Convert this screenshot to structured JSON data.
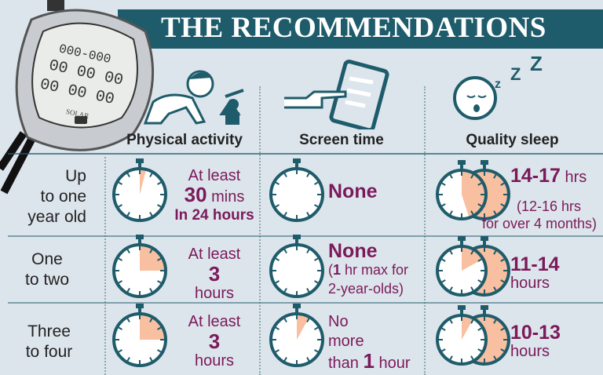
{
  "title": "THE RECOMMENDATIONS",
  "colors": {
    "banner": "#1f5c6b",
    "accent_text": "#7a1a5a",
    "clock_fill": "#f8bfa0",
    "clock_stroke": "#1f5c6b"
  },
  "columns": [
    {
      "label": "Physical activity",
      "icon": "crawling-baby-icon"
    },
    {
      "label": "Screen time",
      "icon": "tablet-pointing-hand-icon"
    },
    {
      "label": "Quality sleep",
      "icon": "sleeping-baby-icon"
    }
  ],
  "stopwatch_lettering": "SOLAR",
  "rows": [
    {
      "label": [
        "Up",
        "to one",
        "year old"
      ],
      "physical": {
        "line1": "At least",
        "value": "30",
        "unit": "mins",
        "line3": "In 24 hours",
        "fill": 0.04
      },
      "screen": {
        "value": "None",
        "fill": 0
      },
      "sleep": {
        "value": "14-17",
        "unit": "hrs",
        "note1": "(12-16 hrs",
        "note2": "for over 4 months)",
        "fill": 0.45
      }
    },
    {
      "label": [
        "One",
        "to two"
      ],
      "physical": {
        "line1": "At least",
        "value": "3",
        "unit": "hours",
        "fill": 0.25
      },
      "screen": {
        "value": "None",
        "note_bold": "1",
        "note1": " hr max for",
        "note2": "2-year-olds)",
        "note_open": "(",
        "fill": 0
      },
      "sleep": {
        "value": "11-14",
        "unit": "hours",
        "fill": 0.17
      }
    },
    {
      "label": [
        "Three",
        "to four"
      ],
      "physical": {
        "line1": "At least",
        "value": "3",
        "unit": "hours",
        "fill": 0.25
      },
      "screen": {
        "line1": "No",
        "line2": "more",
        "line3": "than",
        "value": "1",
        "unit": "hour",
        "fill": 0.08
      },
      "sleep": {
        "value": "10-13",
        "unit": "hours",
        "fill": 0.08
      }
    }
  ]
}
